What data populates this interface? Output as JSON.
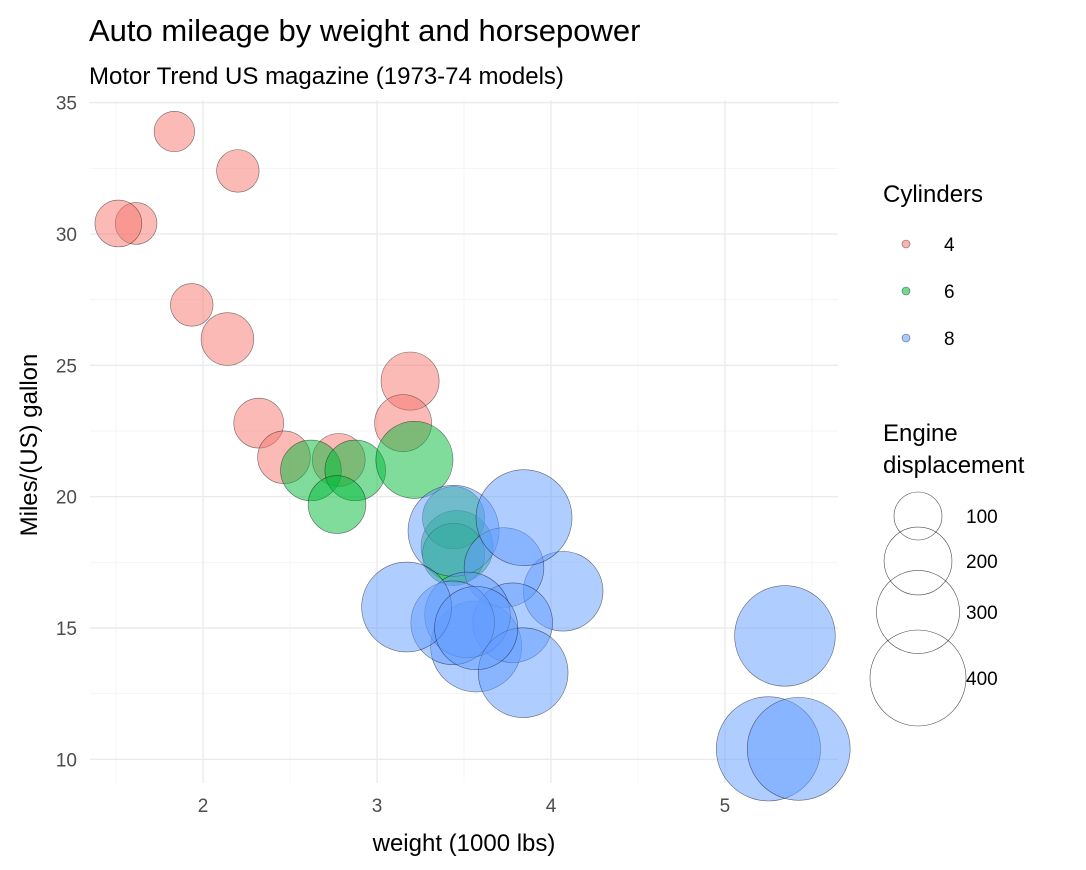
{
  "chart_data": {
    "type": "scatter",
    "title": "Auto mileage by weight and horsepower",
    "subtitle": "Motor Trend US magazine (1973-74 models)",
    "xlabel": "weight (1000 lbs)",
    "ylabel": "Miles/(US) gallon",
    "xlim": [
      1.35,
      5.65
    ],
    "ylim": [
      9.1,
      35.1
    ],
    "x_ticks": [
      2,
      3,
      4,
      5
    ],
    "y_ticks": [
      10,
      15,
      20,
      25,
      30,
      35
    ],
    "grid": true,
    "legend_position": "right",
    "color_legend": {
      "title": "Cylinders",
      "entries": [
        {
          "label": "4",
          "color": "#F8766D"
        },
        {
          "label": "6",
          "color": "#00BA38"
        },
        {
          "label": "8",
          "color": "#619CFF"
        }
      ]
    },
    "size_legend": {
      "title_line1": "Engine",
      "title_line2": "displacement",
      "entries": [
        {
          "label": "100",
          "value": 100
        },
        {
          "label": "200",
          "value": 200
        },
        {
          "label": "300",
          "value": 300
        },
        {
          "label": "400",
          "value": 400
        }
      ]
    },
    "series": [
      {
        "name": "4",
        "color": "#F8766D",
        "points": [
          {
            "x": 2.32,
            "y": 22.8,
            "disp": 108
          },
          {
            "x": 3.19,
            "y": 24.4,
            "disp": 146.7
          },
          {
            "x": 3.15,
            "y": 22.8,
            "disp": 140.8
          },
          {
            "x": 2.2,
            "y": 32.4,
            "disp": 78.7
          },
          {
            "x": 1.615,
            "y": 30.4,
            "disp": 75.7
          },
          {
            "x": 1.835,
            "y": 33.9,
            "disp": 71.1
          },
          {
            "x": 2.465,
            "y": 21.5,
            "disp": 120.1
          },
          {
            "x": 1.935,
            "y": 27.3,
            "disp": 79
          },
          {
            "x": 2.14,
            "y": 26.0,
            "disp": 120.3
          },
          {
            "x": 1.513,
            "y": 30.4,
            "disp": 95.1
          },
          {
            "x": 2.78,
            "y": 21.4,
            "disp": 121
          }
        ]
      },
      {
        "name": "6",
        "color": "#00BA38",
        "points": [
          {
            "x": 2.62,
            "y": 21.0,
            "disp": 160
          },
          {
            "x": 2.875,
            "y": 21.0,
            "disp": 160
          },
          {
            "x": 3.215,
            "y": 21.4,
            "disp": 258
          },
          {
            "x": 3.46,
            "y": 18.1,
            "disp": 225
          },
          {
            "x": 3.44,
            "y": 19.2,
            "disp": 167.6
          },
          {
            "x": 3.44,
            "y": 17.8,
            "disp": 167.6
          },
          {
            "x": 2.77,
            "y": 19.7,
            "disp": 145
          }
        ]
      },
      {
        "name": "8",
        "color": "#619CFF",
        "points": [
          {
            "x": 3.44,
            "y": 18.7,
            "disp": 360
          },
          {
            "x": 3.57,
            "y": 14.3,
            "disp": 360
          },
          {
            "x": 4.07,
            "y": 16.4,
            "disp": 275.8
          },
          {
            "x": 3.73,
            "y": 17.3,
            "disp": 275.8
          },
          {
            "x": 3.78,
            "y": 15.2,
            "disp": 275.8
          },
          {
            "x": 5.25,
            "y": 10.4,
            "disp": 472
          },
          {
            "x": 5.424,
            "y": 10.4,
            "disp": 460
          },
          {
            "x": 5.345,
            "y": 14.7,
            "disp": 440
          },
          {
            "x": 3.52,
            "y": 15.5,
            "disp": 318
          },
          {
            "x": 3.435,
            "y": 15.2,
            "disp": 304
          },
          {
            "x": 3.84,
            "y": 13.3,
            "disp": 350
          },
          {
            "x": 3.845,
            "y": 19.2,
            "disp": 400
          },
          {
            "x": 3.17,
            "y": 15.8,
            "disp": 351
          },
          {
            "x": 3.57,
            "y": 15.0,
            "disp": 301
          }
        ]
      }
    ]
  }
}
